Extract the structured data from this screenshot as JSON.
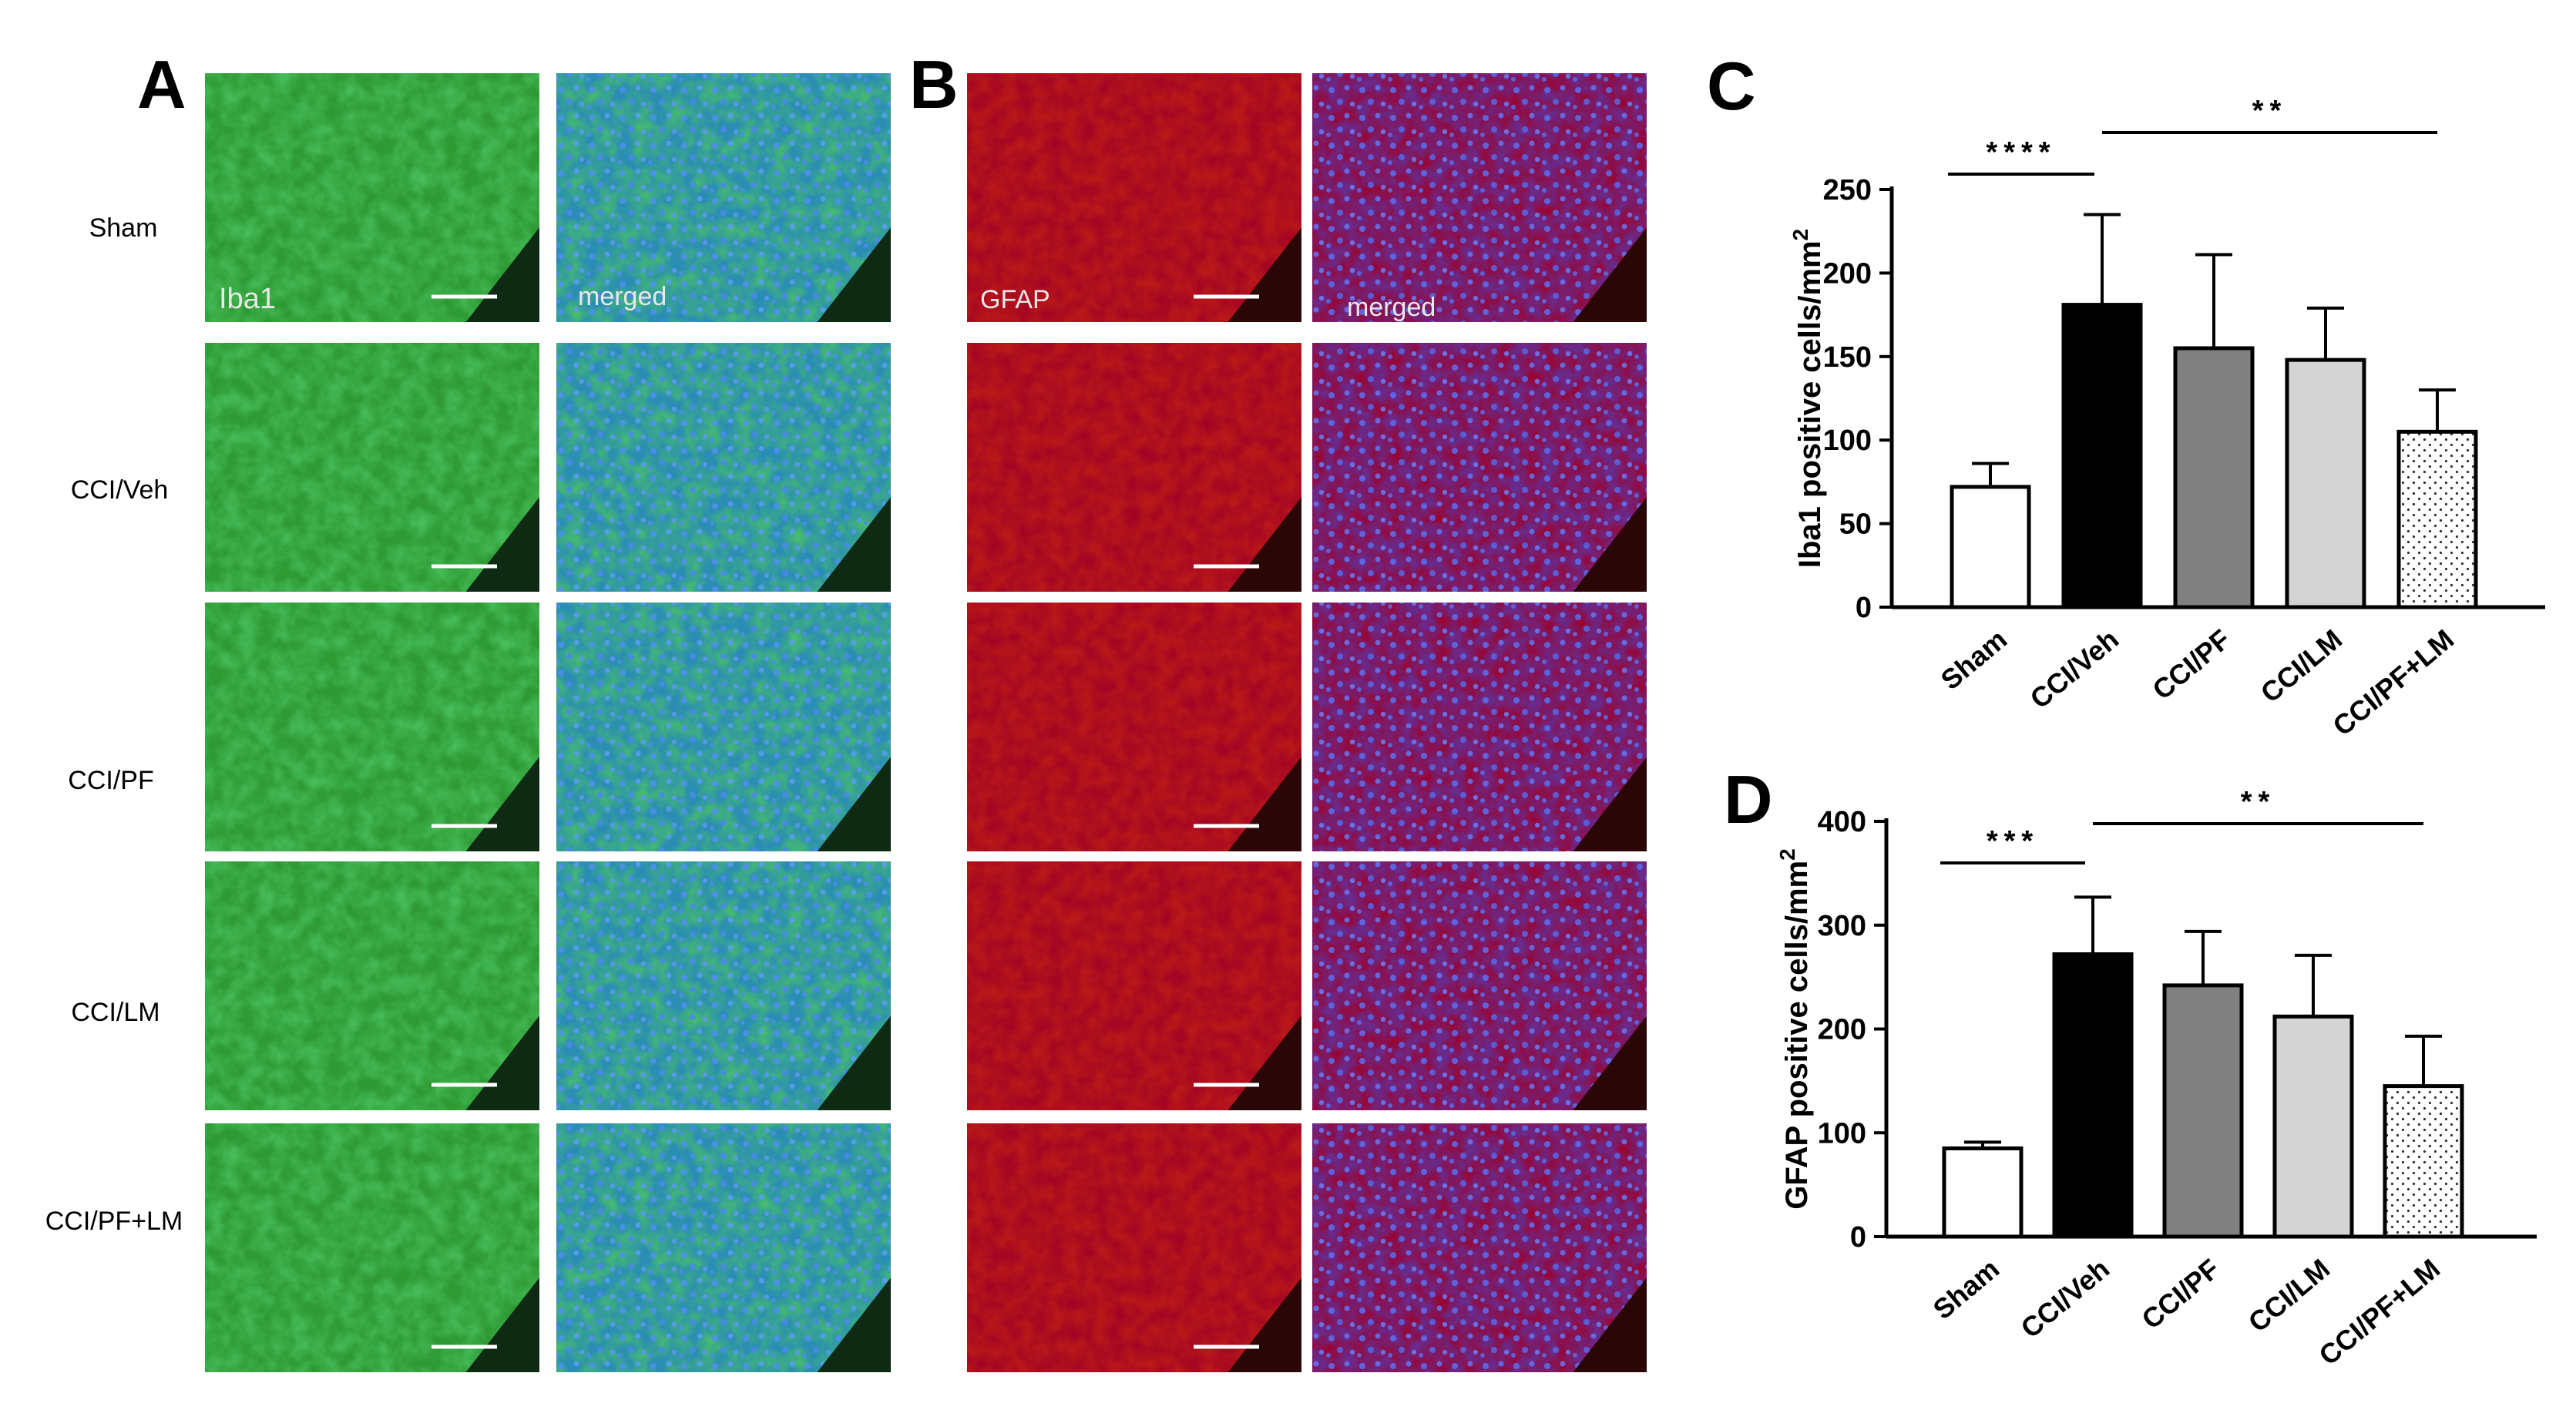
{
  "panels": {
    "A": {
      "letter": "A",
      "micro_labels": [
        "Iba1",
        "merged"
      ],
      "group_labels": [
        "Sham",
        "CCI/Veh",
        "CCI/PF",
        "CCI/LM",
        "CCI/PF+LM"
      ],
      "stain_color": "#2f9a34",
      "merged_color": "#2a8db5"
    },
    "B": {
      "letter": "B",
      "micro_labels": [
        "GFAP",
        "merged"
      ],
      "stain_color": "#b81818",
      "merged_color": "#6a2a8a"
    }
  },
  "colors": {
    "bar_fills": [
      "#ffffff",
      "#000000",
      "#808080",
      "#d4d4d4",
      "#ffffff"
    ],
    "bar_patterns": [
      "none",
      "none",
      "none",
      "none",
      "dots"
    ]
  },
  "chart_data": [
    {
      "panel": "C",
      "type": "bar",
      "categories": [
        "Sham",
        "CCI/Veh",
        "CCI/PF",
        "CCI/LM",
        "CCI/PF+LM"
      ],
      "values": [
        72,
        181,
        155,
        148,
        105
      ],
      "errors": [
        14,
        54,
        56,
        31,
        25
      ],
      "ylabel": "Iba1 positive cells/mm",
      "ylabel_sup": "2",
      "ylim": [
        0,
        250
      ],
      "yticks": [
        0,
        50,
        100,
        150,
        200,
        250
      ],
      "significance": [
        {
          "from": 0,
          "to": 1,
          "label": "****"
        },
        {
          "from": 1,
          "to": 4,
          "label": "**"
        }
      ]
    },
    {
      "panel": "D",
      "type": "bar",
      "categories": [
        "Sham",
        "CCI/Veh",
        "CCI/PF",
        "CCI/LM",
        "CCI/PF+LM"
      ],
      "values": [
        85,
        272,
        242,
        212,
        145
      ],
      "errors": [
        6,
        55,
        52,
        59,
        48
      ],
      "ylabel": "GFAP positive cells/mm",
      "ylabel_sup": "2",
      "ylim": [
        0,
        400
      ],
      "yticks": [
        0,
        100,
        200,
        300,
        400
      ],
      "significance": [
        {
          "from": 0,
          "to": 1,
          "label": "***"
        },
        {
          "from": 1,
          "to": 4,
          "label": "**"
        }
      ]
    }
  ]
}
